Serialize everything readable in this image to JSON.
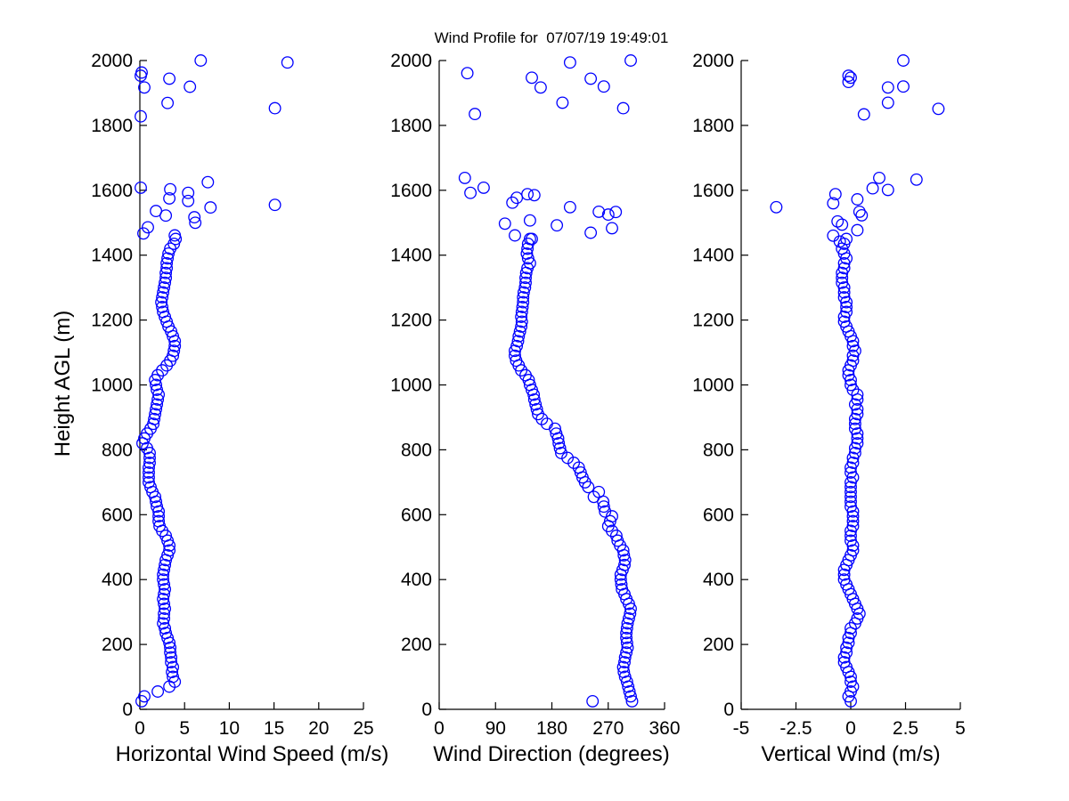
{
  "figure": {
    "background_color": "#FFFFFF",
    "axis_color": "#000000"
  },
  "chart_data": {
    "type": "scatter",
    "title": "Wind Profile for  07/07/19 19:49:01",
    "ylabel": "Height AGL (m)",
    "ylim": [
      0,
      2000
    ],
    "ytick_values": [
      0,
      200,
      400,
      600,
      800,
      1000,
      1200,
      1400,
      1600,
      1800,
      2000
    ],
    "ytick_labels": [
      "0",
      "200",
      "400",
      "600",
      "800",
      "1000",
      "1200",
      "1400",
      "1600",
      "1800",
      "2000"
    ],
    "grid": false,
    "legend": "none",
    "marker": {
      "shape": "open-circle",
      "color": "#0000FF",
      "radius_px": 6.3,
      "stroke_px": 1.3
    },
    "profile_heights": [
      25,
      40,
      55,
      70,
      85,
      100,
      115,
      130,
      145,
      160,
      175,
      190,
      205,
      220,
      235,
      250,
      265,
      280,
      295,
      310,
      325,
      340,
      355,
      370,
      385,
      400,
      415,
      430,
      445,
      460,
      475,
      490,
      505,
      520,
      535,
      550,
      565,
      580,
      595,
      610,
      625,
      640,
      655,
      670,
      685,
      700,
      715,
      730,
      745,
      760,
      775,
      790,
      805,
      820,
      835,
      850,
      865,
      880,
      895,
      910,
      925,
      940,
      955,
      970,
      985,
      1000,
      1015,
      1030,
      1045,
      1060,
      1075,
      1090,
      1105,
      1120,
      1135,
      1150,
      1165,
      1180,
      1195,
      1210,
      1225,
      1240,
      1255,
      1270,
      1285,
      1300,
      1315,
      1330,
      1345,
      1360,
      1375,
      1390,
      1405,
      1420,
      1435,
      1450
    ],
    "panels": [
      {
        "xlabel": "Horizontal Wind Speed (m/s)",
        "xlim": [
          0,
          25
        ],
        "xtick_values": [
          0,
          5,
          10,
          15,
          20,
          25
        ],
        "xtick_labels": [
          "0",
          "5",
          "10",
          "15",
          "20",
          "25"
        ],
        "profile_values": [
          0.2,
          0.5,
          2.0,
          3.3,
          3.9,
          3.7,
          3.6,
          3.7,
          3.5,
          3.5,
          3.4,
          3.4,
          3.3,
          3.1,
          2.9,
          2.8,
          2.6,
          2.7,
          2.7,
          2.8,
          2.7,
          2.6,
          2.7,
          2.8,
          2.7,
          2.6,
          2.6,
          2.7,
          2.8,
          2.9,
          3.1,
          3.3,
          3.3,
          3.1,
          2.9,
          2.5,
          2.2,
          2.1,
          2.1,
          2.1,
          1.9,
          1.8,
          1.7,
          1.4,
          1.2,
          1.0,
          1.0,
          1.0,
          1.0,
          1.1,
          1.1,
          1.1,
          0.8,
          0.3,
          0.5,
          0.8,
          1.2,
          1.5,
          1.6,
          1.7,
          1.8,
          1.9,
          2.0,
          2.1,
          1.9,
          1.8,
          1.7,
          2.0,
          2.5,
          3.0,
          3.4,
          3.7,
          3.8,
          3.9,
          3.9,
          3.7,
          3.5,
          3.2,
          3.0,
          2.8,
          2.6,
          2.5,
          2.4,
          2.5,
          2.6,
          2.7,
          2.8,
          2.9,
          2.9,
          3.0,
          3.0,
          3.1,
          3.2,
          3.4,
          3.8,
          4.0
        ],
        "extra_points": [
          [
            3.9,
            1461
          ],
          [
            0.4,
            1467
          ],
          [
            0.9,
            1486
          ],
          [
            6.2,
            1500
          ],
          [
            6.1,
            1517
          ],
          [
            2.9,
            1522
          ],
          [
            1.8,
            1536
          ],
          [
            7.9,
            1547
          ],
          [
            15.1,
            1555
          ],
          [
            5.4,
            1567
          ],
          [
            3.3,
            1575
          ],
          [
            5.4,
            1592
          ],
          [
            3.4,
            1603
          ],
          [
            0.1,
            1608
          ],
          [
            7.6,
            1625
          ],
          [
            0.1,
            1828
          ],
          [
            15.1,
            1853
          ],
          [
            3.1,
            1869
          ],
          [
            0.5,
            1917
          ],
          [
            5.6,
            1919
          ],
          [
            3.3,
            1944
          ],
          [
            0.1,
            1953
          ],
          [
            0.2,
            1963
          ],
          [
            16.5,
            1994
          ],
          [
            6.8,
            2000
          ]
        ]
      },
      {
        "xlabel": "Wind Direction (degrees)",
        "xlim": [
          0,
          360
        ],
        "xtick_values": [
          0,
          90,
          180,
          270,
          360
        ],
        "xtick_labels": [
          "0",
          "90",
          "180",
          "270",
          "360"
        ],
        "profile_values": [
          308,
          306,
          304,
          302,
          300,
          297,
          295,
          294,
          296,
          297,
          299,
          301,
          300,
          299,
          299,
          300,
          301,
          303,
          305,
          306,
          303,
          299,
          296,
          292,
          291,
          290,
          290,
          293,
          296,
          297,
          295,
          294,
          289,
          285,
          283,
          276,
          270,
          273,
          276,
          265,
          263,
          262,
          247,
          255,
          238,
          233,
          229,
          226,
          223,
          215,
          205,
          195,
          193,
          191,
          190,
          187,
          185,
          172,
          164,
          158,
          156,
          154,
          152,
          151,
          148,
          145,
          143,
          138,
          131,
          127,
          123,
          121,
          121,
          124,
          126,
          127,
          129,
          131,
          132,
          131,
          132,
          133,
          134,
          134,
          135,
          137,
          138,
          138,
          139,
          141,
          145,
          142,
          140,
          141,
          142,
          145
        ],
        "extra_points": [
          [
            121,
            1461
          ],
          [
            148,
            1450
          ],
          [
            242,
            1469
          ],
          [
            276,
            1483
          ],
          [
            188,
            1492
          ],
          [
            105,
            1497
          ],
          [
            145,
            1507
          ],
          [
            270,
            1525
          ],
          [
            282,
            1533
          ],
          [
            255,
            1534
          ],
          [
            209,
            1548
          ],
          [
            117,
            1562
          ],
          [
            124,
            1577
          ],
          [
            152,
            1585
          ],
          [
            141,
            1588
          ],
          [
            50,
            1592
          ],
          [
            71,
            1608
          ],
          [
            41,
            1638
          ],
          [
            57,
            1835
          ],
          [
            294,
            1853
          ],
          [
            197,
            1870
          ],
          [
            162,
            1917
          ],
          [
            263,
            1920
          ],
          [
            242,
            1944
          ],
          [
            148,
            1947
          ],
          [
            45,
            1961
          ],
          [
            209,
            1994
          ],
          [
            306,
            2000
          ],
          [
            245,
            25
          ]
        ]
      },
      {
        "xlabel": "Vertical Wind (m/s)",
        "xlim": [
          -5,
          5
        ],
        "xtick_values": [
          -5,
          -2.5,
          0,
          2.5,
          5
        ],
        "xtick_labels": [
          "-5",
          "-2.5",
          "0",
          "2.5",
          "5"
        ],
        "profile_values": [
          0.0,
          -0.1,
          0.0,
          0.1,
          0.0,
          0.0,
          -0.1,
          -0.2,
          -0.3,
          -0.3,
          -0.2,
          -0.2,
          -0.1,
          -0.1,
          0.0,
          0.0,
          0.2,
          0.3,
          0.4,
          0.3,
          0.2,
          0.1,
          0.0,
          -0.1,
          -0.2,
          -0.3,
          -0.3,
          -0.3,
          -0.2,
          -0.1,
          0.0,
          0.1,
          0.1,
          0.0,
          0.0,
          0.0,
          0.1,
          0.1,
          0.1,
          0.1,
          0.0,
          0.0,
          0.0,
          0.0,
          0.0,
          0.0,
          0.1,
          0.0,
          0.0,
          0.1,
          0.1,
          0.2,
          0.2,
          0.3,
          0.3,
          0.3,
          0.2,
          0.2,
          0.2,
          0.3,
          0.3,
          0.2,
          0.3,
          0.3,
          0.1,
          0.0,
          0.0,
          -0.1,
          -0.1,
          0.0,
          0.1,
          0.1,
          0.2,
          0.1,
          0.1,
          0.0,
          -0.1,
          -0.2,
          -0.3,
          -0.3,
          -0.2,
          -0.2,
          -0.2,
          -0.3,
          -0.3,
          -0.3,
          -0.4,
          -0.4,
          -0.4,
          -0.3,
          -0.3,
          -0.2,
          -0.3,
          -0.4,
          -0.3,
          -0.2
        ],
        "extra_points": [
          [
            -0.5,
            1442
          ],
          [
            -0.8,
            1460
          ],
          [
            0.3,
            1477
          ],
          [
            -0.4,
            1494
          ],
          [
            -0.6,
            1504
          ],
          [
            0.5,
            1523
          ],
          [
            0.4,
            1534
          ],
          [
            -3.4,
            1548
          ],
          [
            -0.8,
            1560
          ],
          [
            0.3,
            1572
          ],
          [
            -0.7,
            1588
          ],
          [
            1.7,
            1601
          ],
          [
            1.0,
            1606
          ],
          [
            3.0,
            1633
          ],
          [
            1.3,
            1638
          ],
          [
            0.6,
            1834
          ],
          [
            4.0,
            1851
          ],
          [
            1.7,
            1870
          ],
          [
            1.7,
            1917
          ],
          [
            2.4,
            1920
          ],
          [
            -0.1,
            1934
          ],
          [
            0.0,
            1947
          ],
          [
            -0.1,
            1953
          ],
          [
            2.4,
            2000
          ]
        ]
      }
    ]
  }
}
